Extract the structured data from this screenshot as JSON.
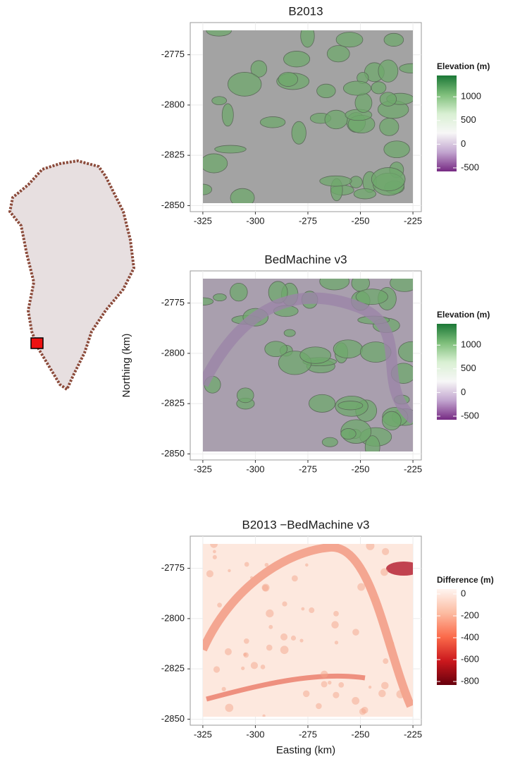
{
  "chart_data": [
    {
      "type": "raster",
      "title": "B2013",
      "xlim": [
        -331,
        -221
      ],
      "ylim": [
        -2853,
        -2759
      ],
      "xticks": [
        -325,
        -300,
        -275,
        -250,
        -225
      ],
      "yticks": [
        -2775,
        -2800,
        -2825,
        -2850
      ],
      "grid": true,
      "colorbar": {
        "title": "Elevation (m)",
        "lim": [
          -575,
          1450
        ],
        "ticks": [
          1000,
          500,
          0,
          -500
        ],
        "colors": [
          "#1b7837",
          "#7fbf7b",
          "#d9f0d3",
          "#f7f7f7",
          "#c2a5cf",
          "#762a83"
        ]
      }
    },
    {
      "type": "raster",
      "title": "BedMachine v3",
      "ylabel": "Northing (km)",
      "xlim": [
        -331,
        -221
      ],
      "ylim": [
        -2853,
        -2759
      ],
      "xticks": [
        -325,
        -300,
        -275,
        -250,
        -225
      ],
      "yticks": [
        -2775,
        -2800,
        -2825,
        -2850
      ],
      "grid": true,
      "colorbar": {
        "title": "Elevation (m)",
        "lim": [
          -575,
          1450
        ],
        "ticks": [
          1000,
          500,
          0,
          -500
        ],
        "colors": [
          "#1b7837",
          "#7fbf7b",
          "#d9f0d3",
          "#f7f7f7",
          "#c2a5cf",
          "#762a83"
        ]
      }
    },
    {
      "type": "raster",
      "title": "B2013 −BedMachine v3",
      "xlabel": "Easting (km)",
      "xlim": [
        -331,
        -221
      ],
      "ylim": [
        -2853,
        -2759
      ],
      "xticks": [
        -325,
        -300,
        -275,
        -250,
        -225
      ],
      "yticks": [
        -2775,
        -2800,
        -2825,
        -2850
      ],
      "grid": true,
      "colorbar": {
        "title": "Difference (m)",
        "lim": [
          -832,
          45
        ],
        "ticks": [
          0,
          -200,
          -400,
          -600,
          -800
        ],
        "colors": [
          "#fff5f0",
          "#fcbba1",
          "#fb6a4a",
          "#cb181d",
          "#67000d"
        ]
      }
    }
  ]
}
